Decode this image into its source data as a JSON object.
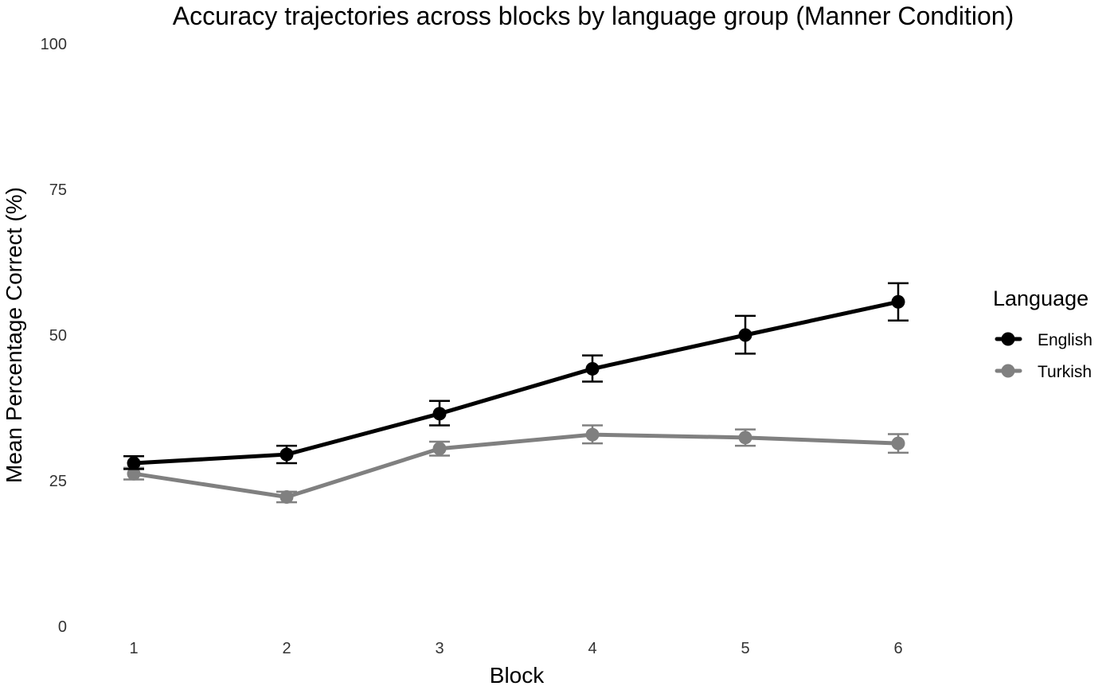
{
  "chart_data": {
    "type": "line",
    "title": "Accuracy trajectories across blocks by language group (Manner Condition)",
    "xlabel": "Block",
    "ylabel": "Mean Percentage Correct (%)",
    "x": [
      1,
      2,
      3,
      4,
      5,
      6
    ],
    "xlim": [
      1,
      6
    ],
    "ylim": [
      0,
      100
    ],
    "yticks": [
      0,
      25,
      50,
      75,
      100
    ],
    "grid": false,
    "legend": {
      "title": "Language",
      "position": "right"
    },
    "series": [
      {
        "name": "English",
        "color": "#000000",
        "values": [
          28.0,
          29.5,
          36.5,
          44.2,
          50.0,
          55.7
        ],
        "error_low": [
          27.0,
          28.0,
          34.5,
          42.0,
          46.8,
          52.5
        ],
        "error_high": [
          29.2,
          31.0,
          38.7,
          46.5,
          53.3,
          58.9
        ]
      },
      {
        "name": "Turkish",
        "color": "#808080",
        "values": [
          26.2,
          22.2,
          30.5,
          32.9,
          32.4,
          31.4
        ],
        "error_low": [
          25.2,
          21.3,
          29.3,
          31.4,
          31.0,
          29.8
        ],
        "error_high": [
          27.2,
          23.1,
          31.7,
          34.5,
          33.8,
          33.0
        ]
      }
    ]
  }
}
